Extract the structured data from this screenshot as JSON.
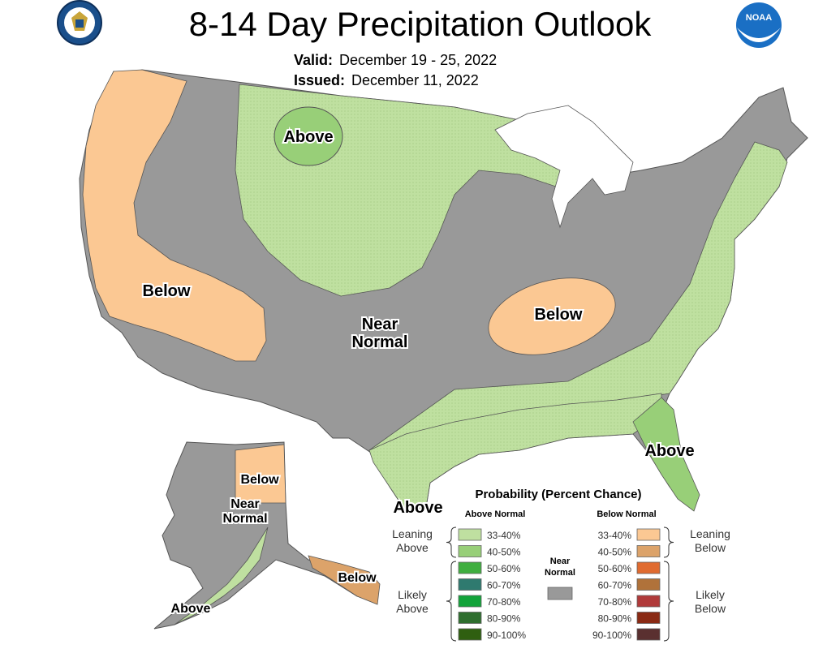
{
  "title": "8-14 Day Precipitation Outlook",
  "valid": {
    "label": "Valid:",
    "value": "December 19 - 25, 2022"
  },
  "issued": {
    "label": "Issued:",
    "value": "December 11, 2022"
  },
  "logos": {
    "left": "doc-seal",
    "right": "noaa-logo",
    "right_text": "NOAA"
  },
  "regions": [
    {
      "label": "Above"
    },
    {
      "label": "Below"
    },
    {
      "label": "Near Normal"
    },
    {
      "label": "Below"
    },
    {
      "label": "Above"
    },
    {
      "label": "Above"
    },
    {
      "label": "Below"
    },
    {
      "label": "Near Normal"
    },
    {
      "label": "Below"
    },
    {
      "label": "Above"
    }
  ],
  "legend": {
    "title": "Probability (Percent Chance)",
    "above_head": "Above Normal",
    "below_head": "Below Normal",
    "near_label": "Near Normal",
    "leaning_above": "Leaning Above",
    "likely_above": "Likely Above",
    "leaning_below": "Leaning Below",
    "likely_below": "Likely Below",
    "above": [
      {
        "range": "33-40%",
        "color": "#bfe0a0"
      },
      {
        "range": "40-50%",
        "color": "#98cf78"
      },
      {
        "range": "50-60%",
        "color": "#3fae3f"
      },
      {
        "range": "60-70%",
        "color": "#2f7a6f"
      },
      {
        "range": "70-80%",
        "color": "#12a33a"
      },
      {
        "range": "80-90%",
        "color": "#2e6e2e"
      },
      {
        "range": "90-100%",
        "color": "#2f5f10"
      }
    ],
    "below": [
      {
        "range": "33-40%",
        "color": "#fbc893"
      },
      {
        "range": "40-50%",
        "color": "#dca36a"
      },
      {
        "range": "50-60%",
        "color": "#e06b30"
      },
      {
        "range": "60-70%",
        "color": "#b0723a"
      },
      {
        "range": "70-80%",
        "color": "#b03a3a"
      },
      {
        "range": "80-90%",
        "color": "#8a2a14"
      },
      {
        "range": "90-100%",
        "color": "#5a3030"
      }
    ],
    "near_color": "#999999"
  }
}
